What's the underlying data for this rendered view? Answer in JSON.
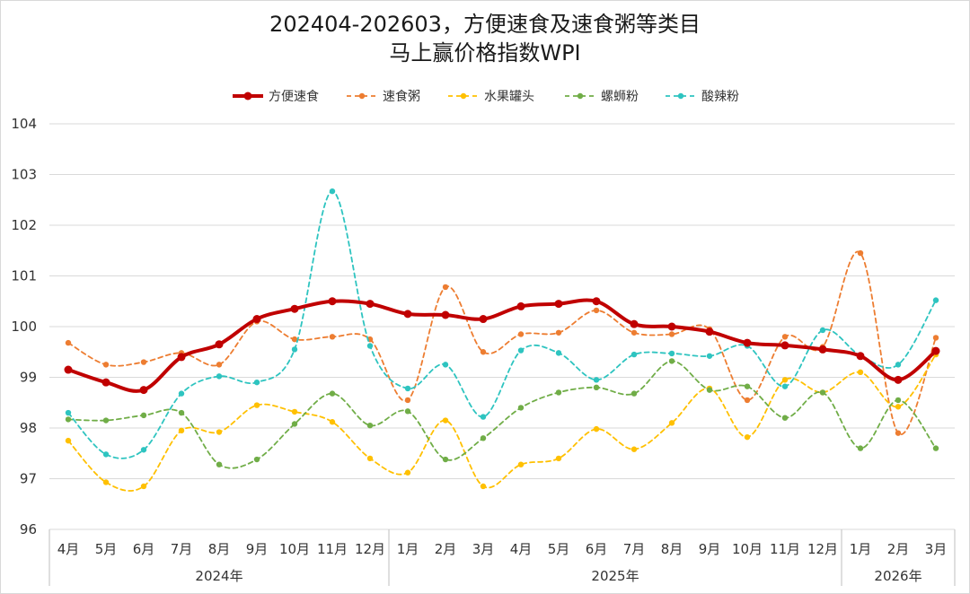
{
  "chart_data": {
    "type": "line",
    "title_line1": "202404-202603，方便速食及速食粥等类目",
    "title_line2": "马上赢价格指数WPI",
    "xlabel": "",
    "ylabel": "",
    "ylim": [
      96,
      104
    ],
    "yticks": [
      "96",
      "97",
      "98",
      "99",
      "100",
      "101",
      "102",
      "103",
      "104"
    ],
    "grid": true,
    "legend_position": "top",
    "categories": [
      "4月",
      "5月",
      "6月",
      "7月",
      "8月",
      "9月",
      "10月",
      "11月",
      "12月",
      "1月",
      "2月",
      "3月",
      "4月",
      "5月",
      "6月",
      "7月",
      "8月",
      "9月",
      "10月",
      "11月",
      "12月",
      "1月",
      "2月",
      "3月"
    ],
    "year_groups": [
      {
        "label": "2024年",
        "start": 0,
        "count": 9
      },
      {
        "label": "2025年",
        "start": 9,
        "count": 12
      },
      {
        "label": "2026年",
        "start": 21,
        "count": 3
      }
    ],
    "series": [
      {
        "name": "方便速食",
        "color": "#c00000",
        "style": "solid",
        "values": [
          99.15,
          98.9,
          98.75,
          99.4,
          99.65,
          100.15,
          100.35,
          100.5,
          100.45,
          100.25,
          100.23,
          100.15,
          100.4,
          100.45,
          100.5,
          100.05,
          100.0,
          99.9,
          99.68,
          99.63,
          99.55,
          99.42,
          98.95,
          99.52
        ]
      },
      {
        "name": "速食粥",
        "color": "#ed7d31",
        "style": "dashed",
        "values": [
          99.68,
          99.25,
          99.3,
          99.48,
          99.25,
          100.1,
          99.75,
          99.8,
          99.75,
          98.55,
          100.78,
          99.5,
          99.85,
          99.88,
          100.32,
          99.88,
          99.85,
          99.95,
          98.55,
          99.8,
          99.6,
          101.45,
          97.9,
          99.78
        ]
      },
      {
        "name": "水果罐头",
        "color": "#ffc000",
        "style": "dashed",
        "values": [
          97.75,
          96.93,
          96.85,
          97.95,
          97.92,
          98.45,
          98.32,
          98.12,
          97.4,
          97.12,
          98.15,
          96.85,
          97.28,
          97.4,
          97.98,
          97.58,
          98.1,
          98.78,
          97.82,
          98.95,
          98.7,
          99.1,
          98.42,
          99.45
        ]
      },
      {
        "name": "螺蛳粉",
        "color": "#70ad47",
        "style": "dashed",
        "values": [
          98.17,
          98.15,
          98.25,
          98.3,
          97.28,
          97.38,
          98.08,
          98.68,
          98.05,
          98.33,
          97.38,
          97.8,
          98.4,
          98.7,
          98.8,
          98.68,
          99.32,
          98.75,
          98.82,
          98.2,
          98.7,
          97.6,
          98.55,
          97.6
        ]
      },
      {
        "name": "酸辣粉",
        "color": "#2ec4c0",
        "style": "dashed",
        "values": [
          98.3,
          97.48,
          97.57,
          98.68,
          99.02,
          98.9,
          99.55,
          102.67,
          99.62,
          98.78,
          99.25,
          98.22,
          99.53,
          99.48,
          98.95,
          99.45,
          99.47,
          99.42,
          99.62,
          98.82,
          99.93,
          99.43,
          99.25,
          100.52
        ]
      }
    ]
  }
}
